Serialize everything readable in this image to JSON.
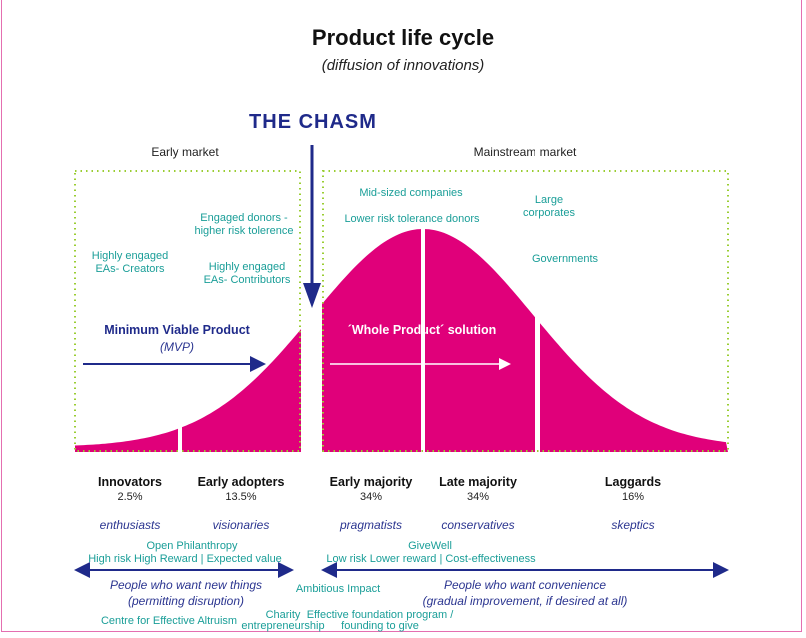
{
  "title": "Product life cycle",
  "subtitle": "(diffusion of innovations)",
  "chasm_label": "THE CHASM",
  "early_market": {
    "label": "Early market",
    "notes": [
      "Highly engaged",
      "EAs- Creators",
      "Engaged donors -",
      "higher risk tolerence",
      "Highly engaged",
      "EAs- Contributors"
    ],
    "mvp_title": "Minimum Viable Product",
    "mvp_abbr": "(MVP)"
  },
  "mainstream_market": {
    "label": "Mainstream market",
    "notes": [
      "Mid-sized companies",
      "Lower risk tolerance donors",
      "Large",
      "corporates",
      "Governments"
    ],
    "solution": "´Whole Product´ solution"
  },
  "segments": [
    {
      "name": "Innovators",
      "share": "2.5%",
      "type": "enthusiasts"
    },
    {
      "name": "Early adopters",
      "share": "13.5%",
      "type": "visionaries"
    },
    {
      "name": "Early majority",
      "share": "34%",
      "type": "pragmatists"
    },
    {
      "name": "Late majority",
      "share": "34%",
      "type": "conservatives"
    },
    {
      "name": "Laggards",
      "share": "16%",
      "type": "skeptics"
    }
  ],
  "left_funder": {
    "name": "Open Philanthropy",
    "approach": "High risk High Reward | Expected value"
  },
  "right_funder": {
    "name": "GiveWell",
    "approach": "Low risk Lower reward | Cost-effectiveness"
  },
  "left_people": [
    "People who want new things",
    "(permitting disruption)"
  ],
  "right_people": [
    "People who want convenience",
    "(gradual improvement, if desired at all)"
  ],
  "orgs": {
    "ambitious": "Ambitious Impact",
    "cea": "Centre for Effective Altruism",
    "charity_1": "Charity",
    "charity_2": "entrepreneurship",
    "foundation_1": "Effective foundation program /",
    "foundation_2": "founding to give"
  },
  "colors": {
    "curve": "#e0007a",
    "navy": "#1f2a8a",
    "teal": "#1a9e98",
    "box": "#9acd32"
  }
}
